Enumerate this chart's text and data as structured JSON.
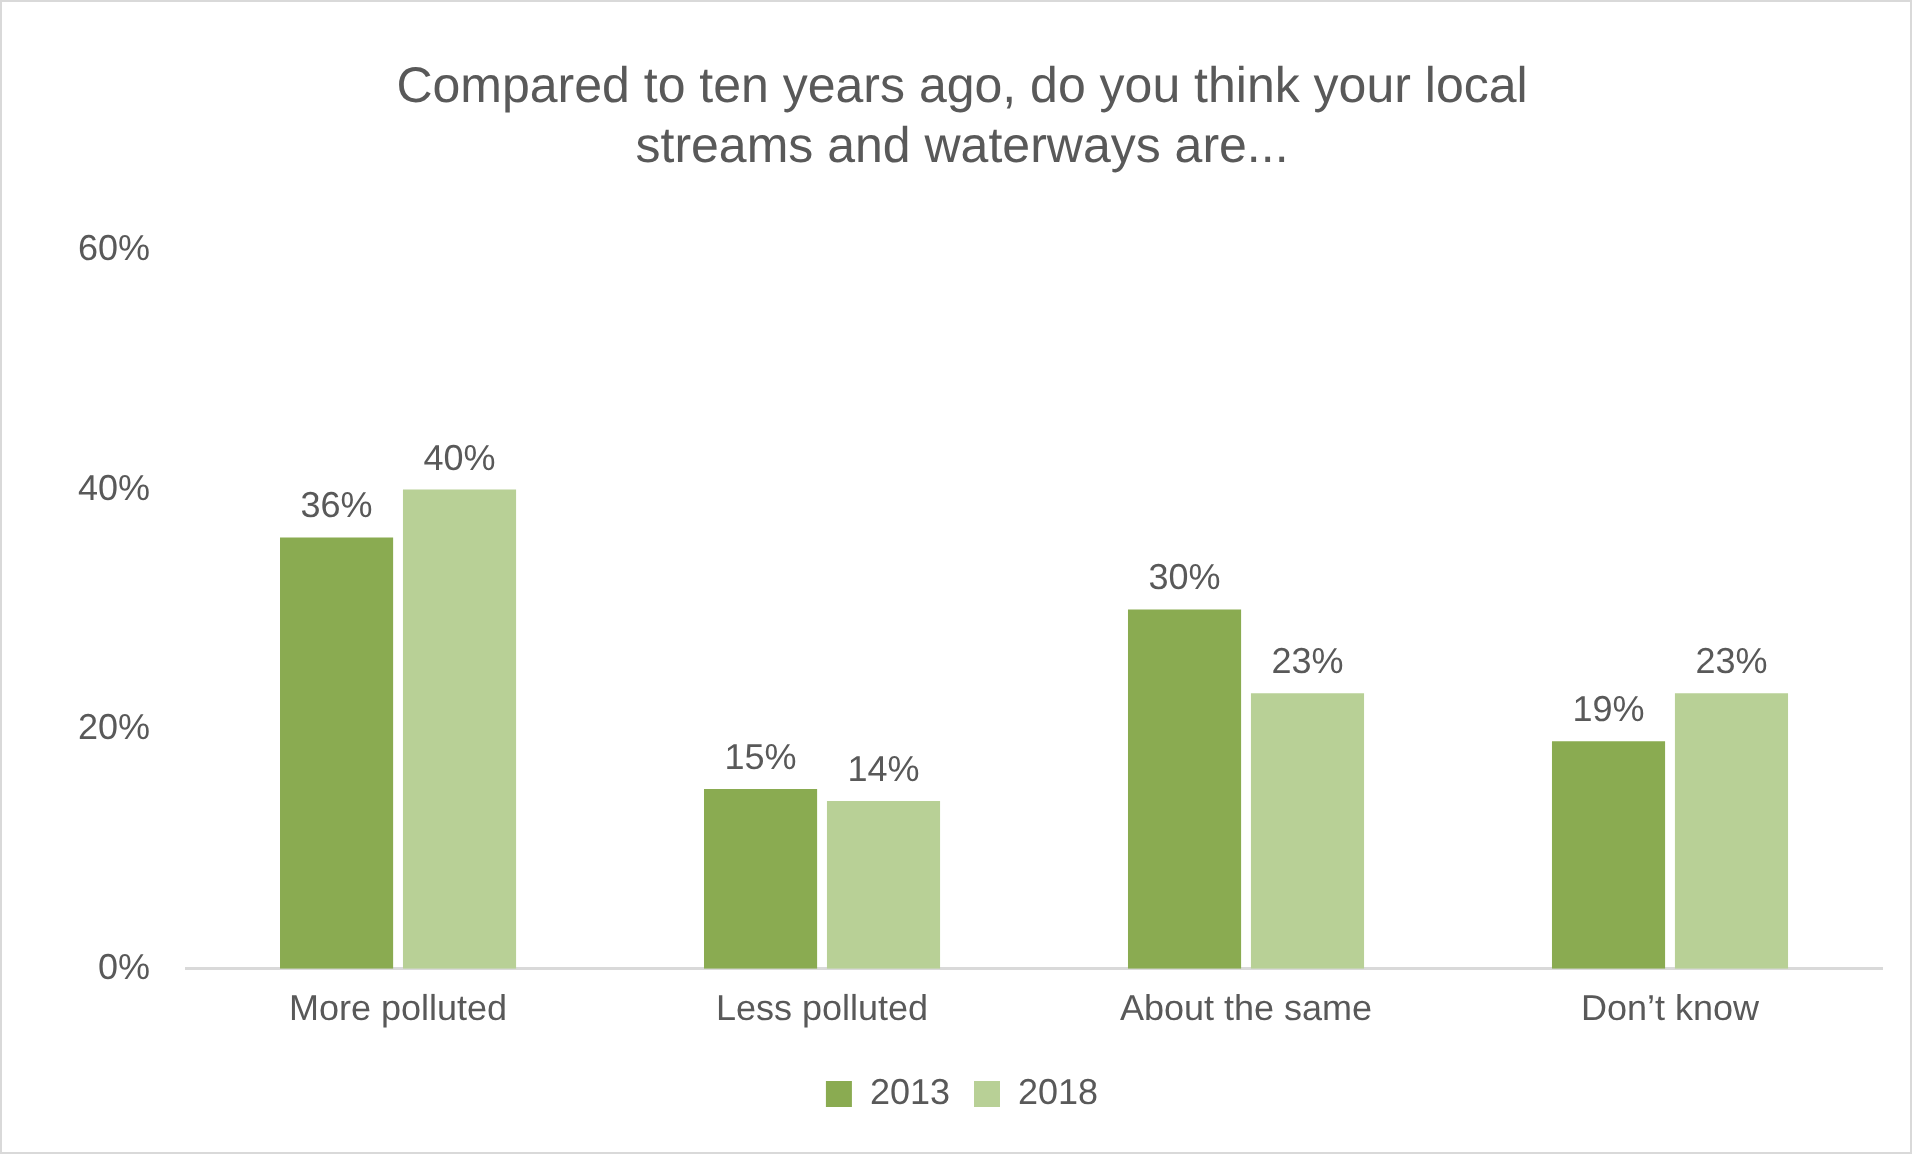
{
  "chart_data": {
    "type": "bar",
    "title": "Compared to ten years ago, do you think your local streams and waterways are...",
    "categories": [
      "More polluted",
      "Less polluted",
      "About the same",
      "Don’t know"
    ],
    "series": [
      {
        "name": "2013",
        "color": "#8aab51",
        "values": [
          36,
          15,
          30,
          19
        ],
        "value_labels": [
          "36%",
          "15%",
          "30%",
          "19%"
        ]
      },
      {
        "name": "2018",
        "color": "#b8d096",
        "values": [
          40,
          14,
          23,
          23
        ],
        "value_labels": [
          "40%",
          "14%",
          "23%",
          "23%"
        ]
      }
    ],
    "ylim": [
      0,
      60
    ],
    "yticks": [
      {
        "value": 0,
        "label": "0%"
      },
      {
        "value": 20,
        "label": "20%"
      },
      {
        "value": 40,
        "label": "40%"
      },
      {
        "value": 60,
        "label": "60%"
      }
    ],
    "grid": false,
    "legend": "bottom"
  }
}
